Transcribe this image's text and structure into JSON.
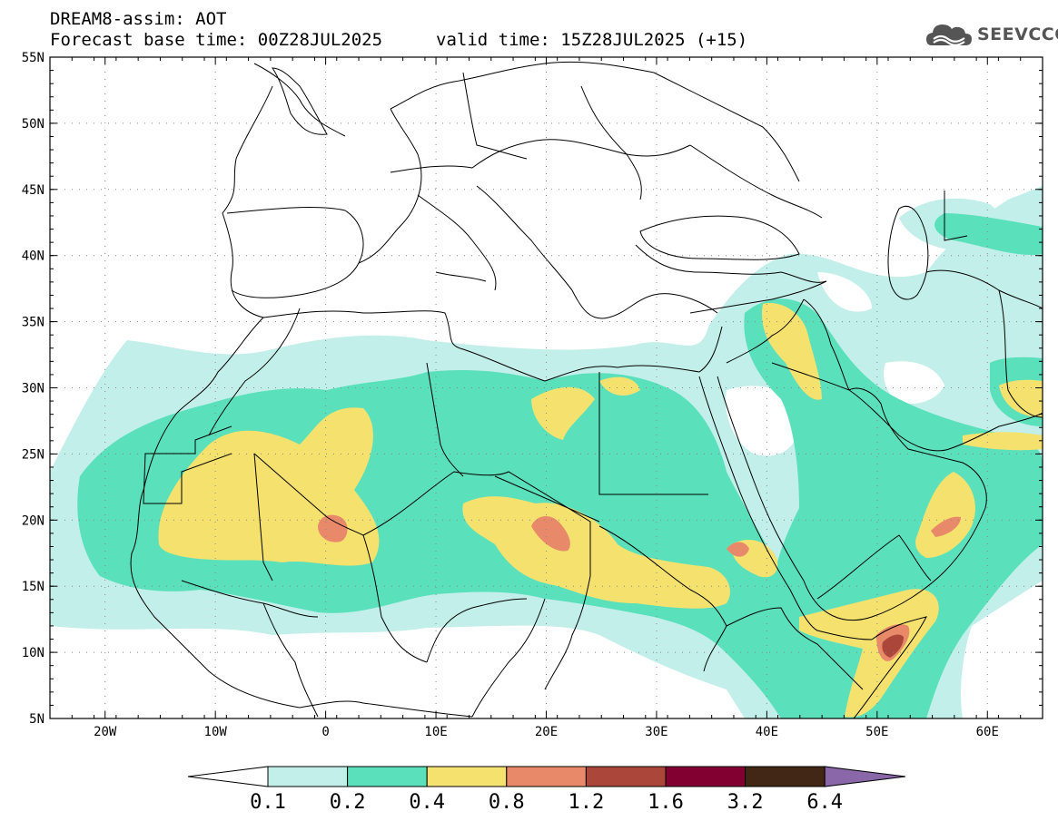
{
  "title": {
    "line1": "DREAM8-assim: AOT",
    "line2": "Forecast base time: 00Z28JUL2025",
    "valid": "valid time: 15Z28JUL2025 (+15)"
  },
  "logo": {
    "text": "SEEVCCC",
    "icon": "cloud-logo-icon",
    "color": "#555555"
  },
  "map": {
    "variable": "Aerosol optical thickness",
    "lon_range": [
      -25,
      65
    ],
    "lat_range": [
      5,
      55
    ],
    "lon_ticks": [
      {
        "value": -20,
        "label": "20W"
      },
      {
        "value": -10,
        "label": "10W"
      },
      {
        "value": 0,
        "label": "0"
      },
      {
        "value": 10,
        "label": "10E"
      },
      {
        "value": 20,
        "label": "20E"
      },
      {
        "value": 30,
        "label": "30E"
      },
      {
        "value": 40,
        "label": "40E"
      },
      {
        "value": 50,
        "label": "50E"
      },
      {
        "value": 60,
        "label": "60E"
      }
    ],
    "lat_ticks": [
      {
        "value": 55,
        "label": "55N"
      },
      {
        "value": 50,
        "label": "50N"
      },
      {
        "value": 45,
        "label": "45N"
      },
      {
        "value": 40,
        "label": "40N"
      },
      {
        "value": 35,
        "label": "35N"
      },
      {
        "value": 30,
        "label": "30N"
      },
      {
        "value": 25,
        "label": "25N"
      },
      {
        "value": 20,
        "label": "20N"
      },
      {
        "value": 15,
        "label": "15N"
      },
      {
        "value": 10,
        "label": "10N"
      },
      {
        "value": 5,
        "label": "5N"
      }
    ],
    "grid": "dotted"
  },
  "colorbar": {
    "levels": [
      "0.1",
      "0.2",
      "0.4",
      "0.8",
      "1.2",
      "1.6",
      "3.2",
      "6.4"
    ],
    "colors": [
      "#ffffff",
      "#c2efe9",
      "#5be0bc",
      "#f5e16e",
      "#e8896a",
      "#aa463a",
      "#820031",
      "#422716",
      "#8a67a8"
    ]
  }
}
